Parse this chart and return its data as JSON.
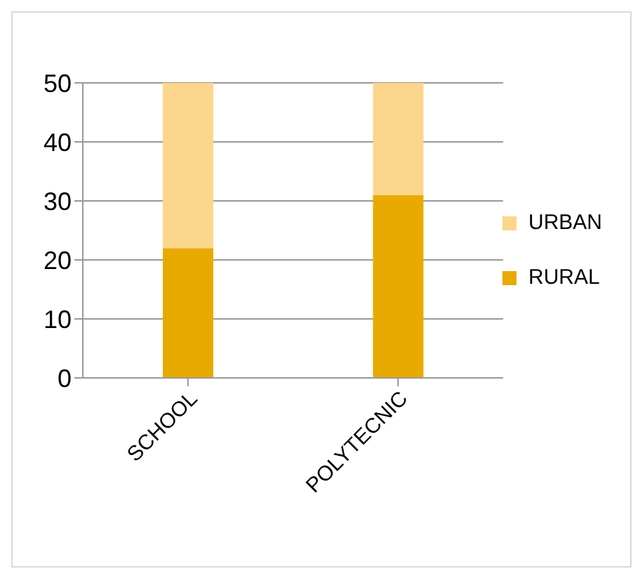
{
  "chart_data": {
    "type": "bar",
    "stacked": true,
    "categories": [
      "SCHOOL",
      "POLYTECNIC"
    ],
    "series": [
      {
        "name": "RURAL",
        "color": "#e8aa00",
        "values": [
          22,
          31
        ]
      },
      {
        "name": "URBAN",
        "color": "#fcd68c",
        "values": [
          28,
          19
        ]
      }
    ],
    "ylim": [
      0,
      50
    ],
    "yticks": [
      0,
      10,
      20,
      30,
      40,
      50
    ],
    "grid": "y",
    "legend": "right"
  }
}
